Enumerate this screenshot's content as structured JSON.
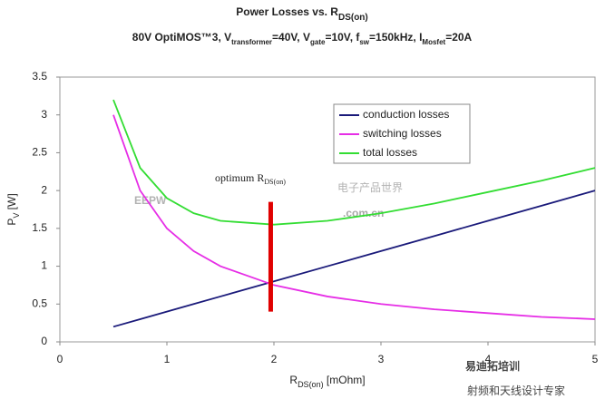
{
  "chart_data": {
    "type": "line",
    "title": [
      "Power Losses vs. R",
      "DS(on)"
    ],
    "subtitle": [
      "80V OptiMOS™3, V",
      "transformer",
      "=40V, V",
      "gate",
      "=10V, f",
      "sw",
      "=150kHz, I",
      "Mosfet",
      "=20A"
    ],
    "x_label": [
      "R",
      "DS(on)",
      " [mOhm]"
    ],
    "y_label": [
      "P",
      "V",
      " [W]"
    ],
    "x": [
      0.5,
      0.75,
      1,
      1.25,
      1.5,
      2,
      2.5,
      3,
      3.5,
      4,
      4.5,
      5
    ],
    "series": [
      {
        "name": "conduction losses",
        "color": "#1a1a7a",
        "values": [
          0.2,
          0.3,
          0.4,
          0.5,
          0.6,
          0.8,
          1.0,
          1.2,
          1.4,
          1.6,
          1.8,
          2.0
        ]
      },
      {
        "name": "switching losses",
        "color": "#e62ee6",
        "values": [
          3.0,
          2.0,
          1.5,
          1.2,
          1.0,
          0.75,
          0.6,
          0.5,
          0.43,
          0.38,
          0.33,
          0.3
        ]
      },
      {
        "name": "total losses",
        "color": "#33dd33",
        "values": [
          3.2,
          2.3,
          1.9,
          1.7,
          1.6,
          1.55,
          1.6,
          1.7,
          1.83,
          1.98,
          2.13,
          2.3
        ]
      }
    ],
    "xlim": [
      0,
      5
    ],
    "xticks": [
      0,
      1,
      2,
      3,
      4,
      5
    ],
    "ylim": [
      0,
      3.5
    ],
    "yticks": [
      0,
      0.5,
      1,
      1.5,
      2,
      2.5,
      3,
      3.5
    ],
    "grid": false,
    "annotation": {
      "text": [
        "optimum R",
        "DS(on)"
      ],
      "x": 1.97,
      "y": [
        0.4,
        1.85
      ],
      "color": "#e00000"
    },
    "watermarks": [
      "EEPW",
      ".com.cn",
      "电子产品世界",
      "易迪拓培训",
      "射频和天线设计专家"
    ]
  }
}
